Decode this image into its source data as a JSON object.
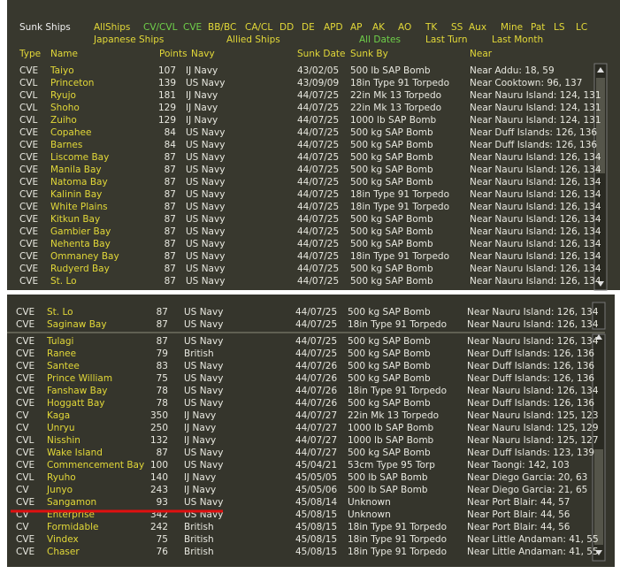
{
  "header": {
    "title": "Sunk Ships",
    "filters": [
      "AllShips",
      "CV/CVL",
      "CVE",
      "BB/BC",
      "CA/CL",
      "DD",
      "DE",
      "APD",
      "AP",
      "AK",
      "AO",
      "TK",
      "SS",
      "Aux",
      "Mine",
      "Pat",
      "LS",
      "LC"
    ],
    "filters2": [
      "Japanese Ships",
      "Allied Ships",
      "All Dates",
      "Last Turn",
      "Last Month"
    ]
  },
  "columns": [
    "Type",
    "Name",
    "Points",
    "Navy",
    "Sunk Date",
    "Sunk By",
    "Near"
  ],
  "top_rows": [
    [
      "CVE",
      "Taiyo",
      "107",
      "IJ Navy",
      "43/02/05",
      "500 lb SAP Bomb",
      "Near Addu: 18, 59"
    ],
    [
      "CVL",
      "Princeton",
      "139",
      "US Navy",
      "43/09/09",
      "18in Type 91 Torpedo",
      "Near Cooktown: 96, 137"
    ],
    [
      "CVL",
      "Ryujo",
      "181",
      "IJ Navy",
      "44/07/25",
      "22in Mk 13 Torpedo",
      "Near Nauru Island: 124, 131"
    ],
    [
      "CVL",
      "Shoho",
      "129",
      "IJ Navy",
      "44/07/25",
      "22in Mk 13 Torpedo",
      "Near Nauru Island: 124, 131"
    ],
    [
      "CVL",
      "Zuiho",
      "129",
      "IJ Navy",
      "44/07/25",
      "1000 lb SAP Bomb",
      "Near Nauru Island: 124, 131"
    ],
    [
      "CVE",
      "Copahee",
      "84",
      "US Navy",
      "44/07/25",
      "500 kg SAP Bomb",
      "Near Duff Islands: 126, 136"
    ],
    [
      "CVE",
      "Barnes",
      "84",
      "US Navy",
      "44/07/25",
      "500 kg SAP Bomb",
      "Near Duff Islands: 126, 136"
    ],
    [
      "CVE",
      "Liscome Bay",
      "87",
      "US Navy",
      "44/07/25",
      "500 kg SAP Bomb",
      "Near Nauru Island: 126, 134"
    ],
    [
      "CVE",
      "Manila Bay",
      "87",
      "US Navy",
      "44/07/25",
      "500 kg SAP Bomb",
      "Near Nauru Island: 126, 134"
    ],
    [
      "CVE",
      "Natoma Bay",
      "87",
      "US Navy",
      "44/07/25",
      "500 kg SAP Bomb",
      "Near Nauru Island: 126, 134"
    ],
    [
      "CVE",
      "Kalinin Bay",
      "87",
      "US Navy",
      "44/07/25",
      "18in Type 91 Torpedo",
      "Near Nauru Island: 126, 134"
    ],
    [
      "CVE",
      "White Plains",
      "87",
      "US Navy",
      "44/07/25",
      "18in Type 91 Torpedo",
      "Near Nauru Island: 126, 134"
    ],
    [
      "CVE",
      "Kitkun Bay",
      "87",
      "US Navy",
      "44/07/25",
      "500 kg SAP Bomb",
      "Near Nauru Island: 126, 134"
    ],
    [
      "CVE",
      "Gambier Bay",
      "87",
      "US Navy",
      "44/07/25",
      "500 kg SAP Bomb",
      "Near Nauru Island: 126, 134"
    ],
    [
      "CVE",
      "Nehenta Bay",
      "87",
      "US Navy",
      "44/07/25",
      "500 kg SAP Bomb",
      "Near Nauru Island: 126, 134"
    ],
    [
      "CVE",
      "Ommaney Bay",
      "87",
      "US Navy",
      "44/07/25",
      "18in Type 91 Torpedo",
      "Near Nauru Island: 126, 134"
    ],
    [
      "CVE",
      "Rudyerd Bay",
      "87",
      "US Navy",
      "44/07/25",
      "500 kg SAP Bomb",
      "Near Nauru Island: 126, 134"
    ],
    [
      "CVE",
      "St. Lo",
      "87",
      "US Navy",
      "44/07/25",
      "500 kg SAP Bomb",
      "Near Nauru Island: 126, 134"
    ]
  ],
  "bottom_rows_a": [
    [
      "CVE",
      "St. Lo",
      "87",
      "US Navy",
      "44/07/25",
      "500 kg SAP Bomb",
      "Near Nauru Island: 126, 134"
    ],
    [
      "CVE",
      "Saginaw Bay",
      "87",
      "US Navy",
      "44/07/25",
      "18in Type 91 Torpedo",
      "Near Nauru Island: 126, 134"
    ]
  ],
  "bottom_rows_b": [
    [
      "CVE",
      "Tulagi",
      "87",
      "US Navy",
      "44/07/25",
      "500 kg SAP Bomb",
      "Near Nauru Island: 126, 134"
    ],
    [
      "CVE",
      "Ranee",
      "79",
      "British",
      "44/07/25",
      "500 kg SAP Bomb",
      "Near Duff Islands: 126, 136"
    ],
    [
      "CVE",
      "Santee",
      "83",
      "US Navy",
      "44/07/26",
      "500 kg SAP Bomb",
      "Near Duff Islands: 126, 136"
    ],
    [
      "CVE",
      "Prince William",
      "75",
      "US Navy",
      "44/07/26",
      "500 kg SAP Bomb",
      "Near Duff Islands: 126, 136"
    ],
    [
      "CVE",
      "Fanshaw Bay",
      "78",
      "US Navy",
      "44/07/26",
      "18in Type 91 Torpedo",
      "Near Nauru Island: 126, 134"
    ],
    [
      "CVE",
      "Hoggatt Bay",
      "78",
      "US Navy",
      "44/07/26",
      "500 kg SAP Bomb",
      "Near Duff Islands: 126, 136"
    ],
    [
      "CV",
      "Kaga",
      "350",
      "IJ Navy",
      "44/07/27",
      "22in Mk 13 Torpedo",
      "Near Nauru Island: 125, 123"
    ],
    [
      "CV",
      "Unryu",
      "250",
      "IJ Navy",
      "44/07/27",
      "1000 lb SAP Bomb",
      "Near Nauru Island: 125, 129"
    ],
    [
      "CVL",
      "Nisshin",
      "132",
      "IJ Navy",
      "44/07/27",
      "1000 lb SAP Bomb",
      "Near Nauru Island: 125, 127"
    ],
    [
      "CVE",
      "Wake Island",
      "87",
      "US Navy",
      "44/07/27",
      "500 kg SAP Bomb",
      "Near Duff Islands: 123, 139"
    ],
    [
      "CVE",
      "Commencement Bay",
      "100",
      "US Navy",
      "45/04/21",
      "53cm Type 95 Torp",
      "Near Taongi: 142, 103"
    ],
    [
      "CVL",
      "Ryuho",
      "140",
      "IJ Navy",
      "45/05/05",
      "500 lb SAP Bomb",
      "Near Diego Garcia: 20, 63"
    ],
    [
      "CV",
      "Junyo",
      "243",
      "IJ Navy",
      "45/05/06",
      "500 lb SAP Bomb",
      "Near Diego Garcia: 21, 65"
    ],
    [
      "CVE",
      "Sangamon",
      "93",
      "US Navy",
      "45/08/14",
      "Unknown",
      "Near Port Blair: 44, 57"
    ],
    [
      "CV",
      "Enterprise",
      "342",
      "US Navy",
      "45/08/15",
      "Unknown",
      "Near Port Blair: 44, 56"
    ],
    [
      "CV",
      "Formidable",
      "242",
      "British",
      "45/08/15",
      "18in Type 91 Torpedo",
      "Near Port Blair: 44, 56"
    ],
    [
      "CVE",
      "Vindex",
      "75",
      "British",
      "45/08/15",
      "18in Type 91 Torpedo",
      "Near Little Andaman: 41, 55"
    ],
    [
      "CVE",
      "Chaser",
      "76",
      "British",
      "45/08/15",
      "18in Type 91 Torpedo",
      "Near Little Andaman: 41, 55"
    ]
  ]
}
